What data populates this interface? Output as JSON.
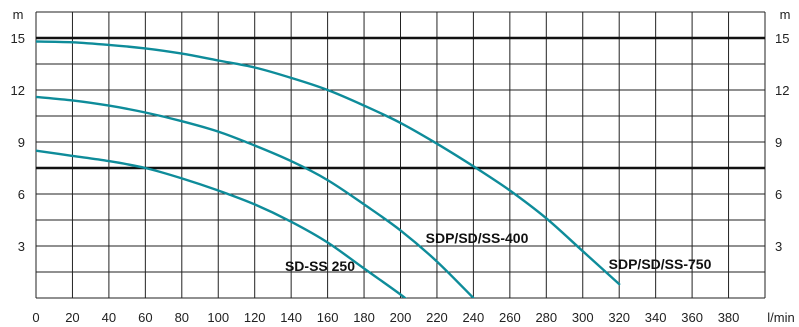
{
  "chart_data": {
    "type": "line",
    "title": "",
    "xlabel": "l/min",
    "ylabel_left": "m",
    "ylabel_right": "m",
    "xlim": [
      0,
      400
    ],
    "ylim": [
      0,
      16.5
    ],
    "x_ticks": [
      0,
      20,
      40,
      60,
      80,
      100,
      120,
      140,
      160,
      180,
      200,
      220,
      240,
      260,
      280,
      300,
      320,
      340,
      360,
      380
    ],
    "y_ticks": [
      3,
      6,
      9,
      12,
      15
    ],
    "grid": true,
    "reference_lines_y": [
      15,
      7.5
    ],
    "series": [
      {
        "name": "SD-SS 250",
        "x": [
          0,
          20,
          40,
          60,
          80,
          100,
          120,
          140,
          160,
          180,
          200,
          212
        ],
        "y": [
          8.5,
          8.2,
          7.9,
          7.5,
          6.9,
          6.2,
          5.4,
          4.4,
          3.2,
          1.7,
          0.2,
          -0.8
        ]
      },
      {
        "name": "SDP/SD/SS-400",
        "x": [
          0,
          20,
          40,
          60,
          80,
          100,
          120,
          140,
          160,
          180,
          200,
          220,
          240
        ],
        "y": [
          11.6,
          11.4,
          11.1,
          10.7,
          10.2,
          9.6,
          8.8,
          7.9,
          6.8,
          5.4,
          3.9,
          2.1,
          0.0
        ]
      },
      {
        "name": "SDP/SD/SS-750",
        "x": [
          0,
          20,
          40,
          60,
          80,
          100,
          120,
          140,
          160,
          180,
          200,
          220,
          240,
          260,
          280,
          300,
          320
        ],
        "y": [
          14.8,
          14.75,
          14.6,
          14.4,
          14.1,
          13.7,
          13.3,
          12.7,
          12.0,
          11.1,
          10.1,
          8.9,
          7.6,
          6.2,
          4.6,
          2.7,
          0.8
        ]
      }
    ]
  },
  "style": {
    "curve_color": "#0e8c9a",
    "grid_color": "#222222"
  }
}
